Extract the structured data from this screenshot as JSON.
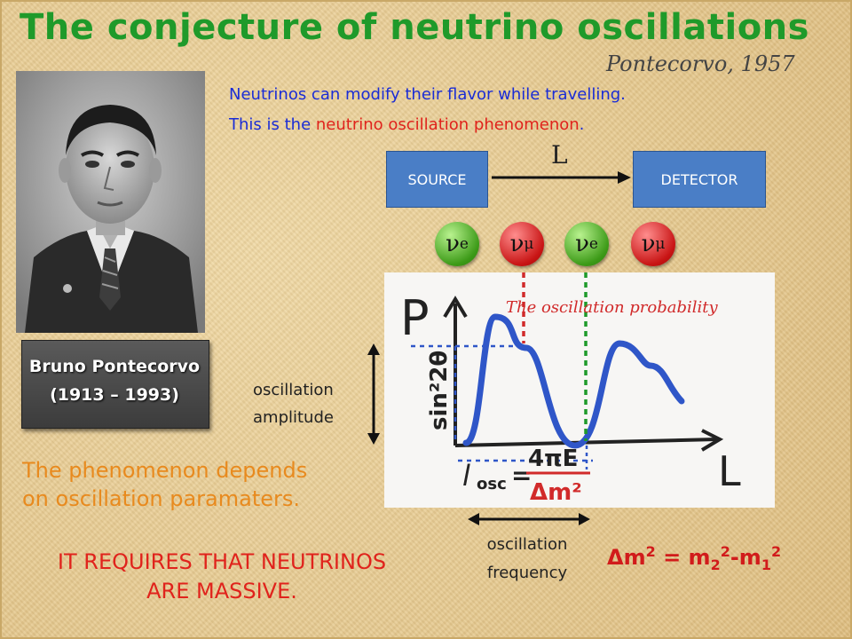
{
  "title": "The conjecture of neutrino oscillations",
  "subtitle": "Pontecorvo, 1957",
  "intro": {
    "line1": "Neutrinos can modify their flavor while travelling.",
    "line2_prefix": "This is the ",
    "line2_highlight": "neutrino oscillation phenomenon",
    "line2_suffix": "."
  },
  "portrait": {
    "name": "Bruno Pontecorvo",
    "years": "(1913 – 1993)"
  },
  "diagram": {
    "source": "SOURCE",
    "detector": "DETECTOR",
    "distance": "L",
    "neutrinos": [
      {
        "symbol": "ν",
        "flavor": "e",
        "color": "#3c9a17"
      },
      {
        "symbol": "ν",
        "flavor": "μ",
        "color": "#c81414"
      },
      {
        "symbol": "ν",
        "flavor": "e",
        "color": "#3c9a17"
      },
      {
        "symbol": "ν",
        "flavor": "μ",
        "color": "#c81414"
      }
    ]
  },
  "plot": {
    "caption": "The oscillation probability",
    "y_axis": "P",
    "x_axis": "L",
    "amplitude": "sin²2θ",
    "length_label": "l",
    "length_sub": "osc",
    "numerator": "4πE",
    "denominator": "Δm²"
  },
  "labels": {
    "amplitude_line1": "oscillation",
    "amplitude_line2": "amplitude",
    "frequency_line1": "oscillation",
    "frequency_line2": "frequency"
  },
  "depends": {
    "line1": "The phenomenon depends",
    "line2": "on oscillation paramaters."
  },
  "requires": {
    "line1": "IT REQUIRES THAT NEUTRINOS",
    "line2": "ARE MASSIVE."
  },
  "formula": {
    "delta": "Δm",
    "exp": "2",
    "equals": " = m",
    "sub2": "2",
    "sup2": "2",
    "minus": "-m",
    "sub1": "1",
    "sup1": "2"
  },
  "colors": {
    "title": "#1f9a2a",
    "intro": "#1a2cd6",
    "highlight": "#e0231c",
    "depends": "#e88a1e",
    "box": "#4a7ec6",
    "curve": "#2f56c8"
  }
}
